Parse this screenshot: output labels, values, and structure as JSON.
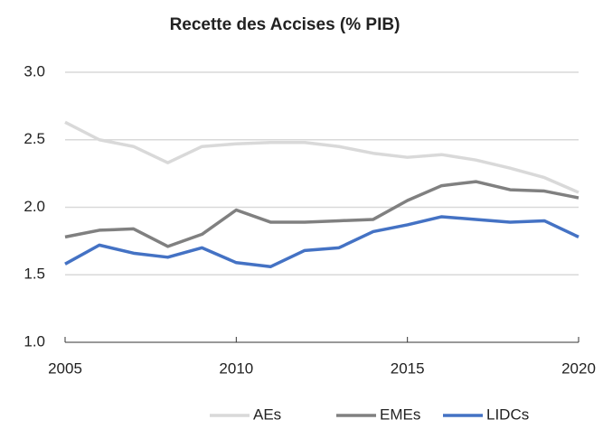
{
  "chart_data": {
    "type": "line",
    "title": "Recette des Accises (% PIB)",
    "x": [
      2005,
      2006,
      2007,
      2008,
      2009,
      2010,
      2011,
      2012,
      2013,
      2014,
      2015,
      2016,
      2017,
      2018,
      2019,
      2020
    ],
    "series": [
      {
        "name": "AEs",
        "color": "#d9d9d9",
        "values": [
          2.63,
          2.5,
          2.45,
          2.33,
          2.45,
          2.47,
          2.48,
          2.48,
          2.45,
          2.4,
          2.37,
          2.39,
          2.35,
          2.29,
          2.22,
          2.11
        ]
      },
      {
        "name": "EMEs",
        "color": "#808080",
        "values": [
          1.78,
          1.83,
          1.84,
          1.71,
          1.8,
          1.98,
          1.89,
          1.89,
          1.9,
          1.91,
          2.05,
          2.16,
          2.19,
          2.13,
          2.12,
          2.07
        ]
      },
      {
        "name": "LIDCs",
        "color": "#4472c4",
        "values": [
          1.58,
          1.72,
          1.66,
          1.63,
          1.7,
          1.59,
          1.56,
          1.68,
          1.7,
          1.82,
          1.87,
          1.93,
          1.91,
          1.89,
          1.9,
          1.78
        ]
      }
    ],
    "xlim": [
      2005,
      2020
    ],
    "xticks": [
      2005,
      2010,
      2015,
      2020
    ],
    "ylim": [
      1,
      3
    ],
    "yticks": [
      {
        "value": 1,
        "label": "1.0"
      },
      {
        "value": 1.5,
        "label": "1.5"
      },
      {
        "value": 2,
        "label": "2.0"
      },
      {
        "value": 2.5,
        "label": "2.5"
      },
      {
        "value": 3,
        "label": "3.0"
      }
    ],
    "grid": true,
    "legend": "bottom"
  }
}
